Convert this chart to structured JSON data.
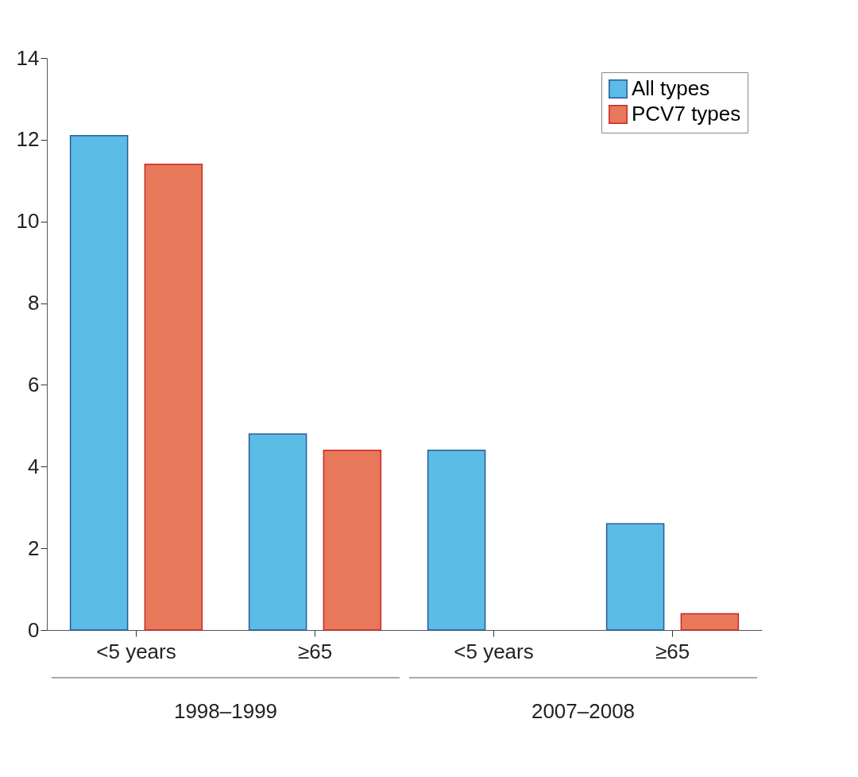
{
  "chart_data": {
    "type": "bar",
    "categories": [
      "<5 years",
      "≥65",
      "<5 years",
      "≥65"
    ],
    "series": [
      {
        "name": "All types",
        "color": "#5bbde6",
        "values": [
          12.1,
          4.8,
          4.4,
          2.6
        ]
      },
      {
        "name": "PCV7 types",
        "color": "#e8785a",
        "values": [
          11.4,
          4.4,
          null,
          0.4
        ]
      }
    ],
    "ylim": [
      0,
      14
    ],
    "yticks": [
      0,
      2,
      4,
      6,
      8,
      10,
      12,
      14
    ],
    "grid": false,
    "legend": "top right",
    "annotations": [
      "1998–1999",
      "2007–2008"
    ]
  }
}
